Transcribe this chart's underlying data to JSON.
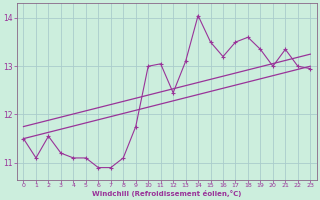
{
  "xlabel": "Windchill (Refroidissement éolien,°C)",
  "bg_color": "#cceedd",
  "grid_color": "#aacccc",
  "line_color": "#993399",
  "spine_color": "#886688",
  "xlim": [
    -0.5,
    23.5
  ],
  "ylim": [
    10.65,
    14.3
  ],
  "yticks": [
    11,
    12,
    13,
    14
  ],
  "xticks": [
    0,
    1,
    2,
    3,
    4,
    5,
    6,
    7,
    8,
    9,
    10,
    11,
    12,
    13,
    14,
    15,
    16,
    17,
    18,
    19,
    20,
    21,
    22,
    23
  ],
  "x_data": [
    0,
    1,
    2,
    3,
    4,
    5,
    6,
    7,
    8,
    9,
    10,
    11,
    12,
    13,
    14,
    15,
    16,
    17,
    18,
    19,
    20,
    21,
    22,
    23
  ],
  "y_main": [
    11.5,
    11.1,
    11.55,
    11.2,
    11.1,
    11.1,
    10.9,
    10.9,
    11.1,
    11.75,
    13.0,
    13.05,
    12.45,
    13.1,
    14.05,
    13.5,
    13.2,
    13.5,
    13.6,
    13.35,
    13.0,
    13.35,
    13.0,
    12.95
  ],
  "trend1_x": [
    0,
    23
  ],
  "trend1_y": [
    11.5,
    13.0
  ],
  "trend2_x": [
    0,
    23
  ],
  "trend2_y": [
    11.75,
    13.25
  ]
}
